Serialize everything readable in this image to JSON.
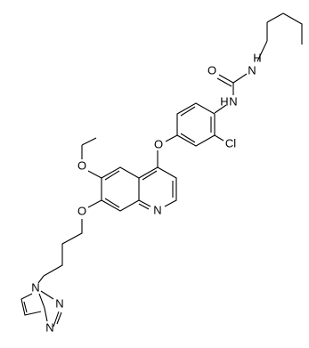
{
  "atoms": [
    {
      "label": "H"
    },
    {
      "label": "N"
    },
    {
      "label": "O"
    },
    {
      "label": "N"
    },
    {
      "label": "H"
    },
    {
      "label": "Cl"
    },
    {
      "label": "O"
    },
    {
      "label": "O"
    },
    {
      "label": "O"
    },
    {
      "label": "N"
    },
    {
      "label": "N"
    },
    {
      "label": "N"
    },
    {
      "label": "N"
    }
  ]
}
